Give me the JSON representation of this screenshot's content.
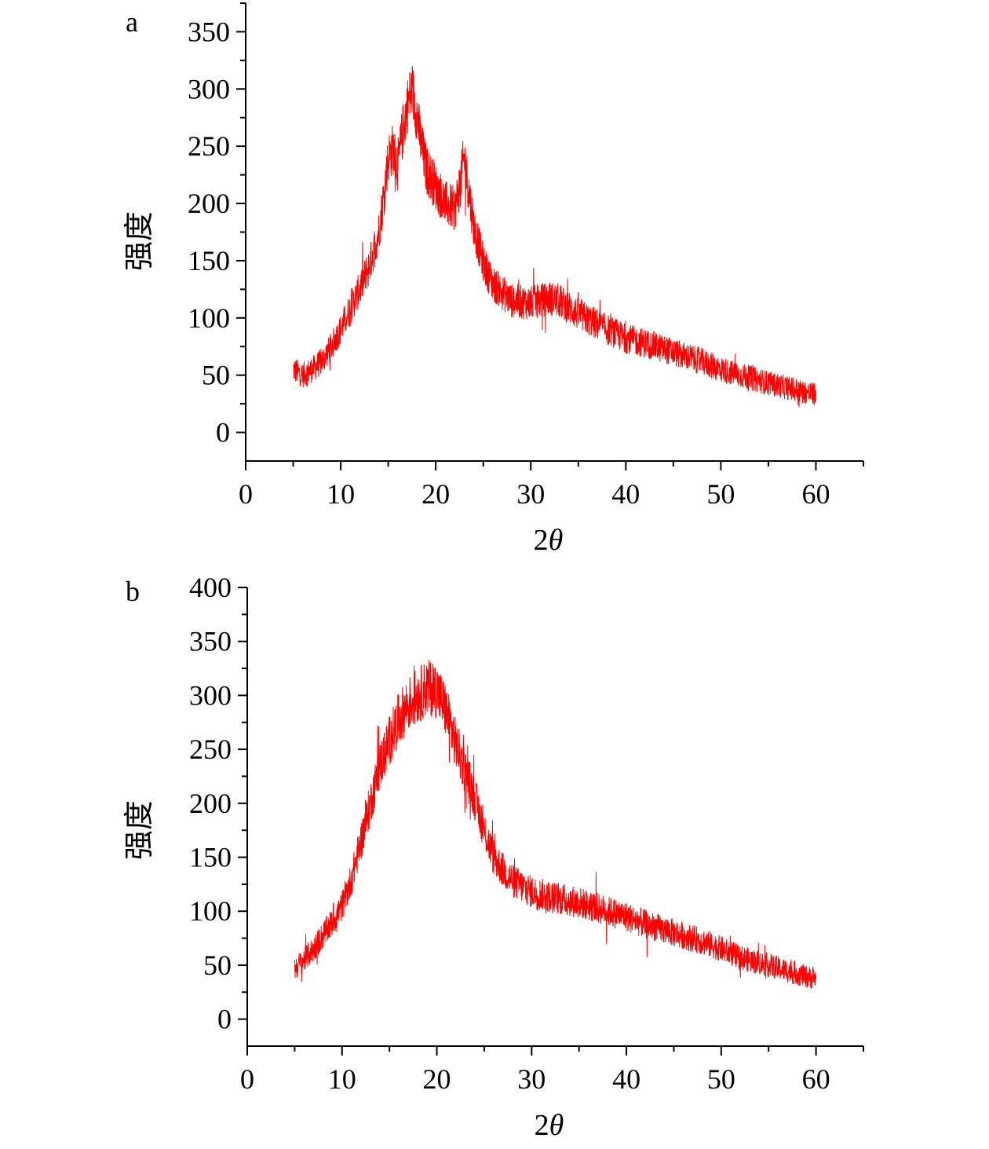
{
  "chart_data": [
    {
      "type": "line",
      "panel_label": "a",
      "xlabel_prefix": "2",
      "xlabel_symbol": "θ",
      "ylabel": "强度",
      "xlim": [
        0,
        65
      ],
      "ylim": [
        -25,
        375
      ],
      "x_ticks": [
        "0",
        "10",
        "20",
        "30",
        "40",
        "50",
        "60"
      ],
      "y_ticks": [
        "0",
        "50",
        "100",
        "150",
        "200",
        "250",
        "300",
        "350"
      ],
      "series_color": "#ff0000",
      "series": [
        {
          "name": "a",
          "x": [
            5,
            6,
            7,
            8,
            9,
            10,
            11,
            12,
            13,
            14,
            14.5,
            15,
            15.5,
            16,
            16.5,
            17,
            17.5,
            18,
            18.5,
            19,
            20,
            21,
            22,
            22.5,
            23,
            23.5,
            24,
            25,
            26,
            27,
            28,
            30,
            32,
            33,
            35,
            38,
            40,
            42,
            45,
            48,
            50,
            52,
            55,
            58,
            60
          ],
          "y": [
            55,
            50,
            55,
            62,
            75,
            90,
            108,
            125,
            145,
            175,
            205,
            240,
            248,
            232,
            262,
            285,
            300,
            278,
            250,
            230,
            215,
            200,
            195,
            215,
            240,
            210,
            180,
            148,
            130,
            122,
            115,
            113,
            117,
            115,
            103,
            90,
            82,
            78,
            70,
            62,
            55,
            50,
            43,
            37,
            33
          ]
        }
      ]
    },
    {
      "type": "line",
      "panel_label": "b",
      "xlabel_prefix": "2",
      "xlabel_symbol": "θ",
      "ylabel": "强度",
      "xlim": [
        0,
        65
      ],
      "ylim": [
        -25,
        400
      ],
      "x_ticks": [
        "0",
        "10",
        "20",
        "30",
        "40",
        "50",
        "60"
      ],
      "y_ticks": [
        "0",
        "50",
        "100",
        "150",
        "200",
        "250",
        "300",
        "350",
        "400"
      ],
      "series_color": "#ff0000",
      "series": [
        {
          "name": "b",
          "x": [
            5,
            6,
            7,
            8,
            9,
            10,
            11,
            12,
            13,
            14,
            15,
            16,
            17,
            18,
            19,
            20,
            21,
            22,
            23,
            24,
            25,
            26,
            27,
            28,
            30,
            32,
            35,
            38,
            40,
            42,
            45,
            48,
            50,
            52,
            55,
            58,
            60
          ],
          "y": [
            47,
            55,
            65,
            78,
            90,
            105,
            130,
            165,
            200,
            235,
            258,
            278,
            292,
            300,
            307,
            305,
            285,
            255,
            230,
            205,
            175,
            150,
            138,
            128,
            118,
            113,
            108,
            100,
            95,
            88,
            80,
            72,
            65,
            57,
            50,
            42,
            37
          ]
        }
      ]
    }
  ]
}
